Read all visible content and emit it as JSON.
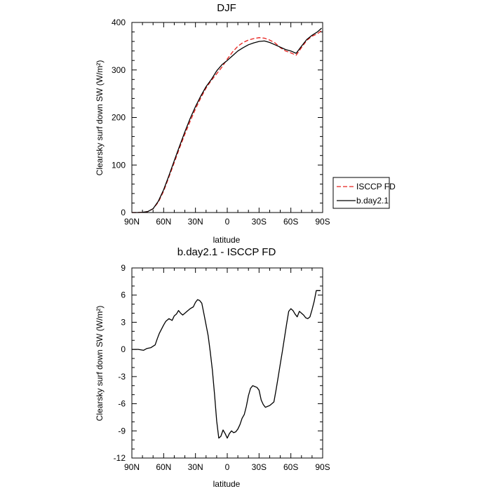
{
  "chart_data": [
    {
      "type": "line",
      "title": "DJF",
      "xlabel": "latitude",
      "ylabel": "Clearsky surf down SW (W/m²)",
      "xlim": [
        90,
        -90
      ],
      "ylim": [
        0,
        400
      ],
      "xticks": [
        90,
        60,
        30,
        0,
        -30,
        -60,
        -90
      ],
      "xticklabels": [
        "90N",
        "60N",
        "30N",
        "0",
        "30S",
        "60S",
        "90S"
      ],
      "yticks": [
        0,
        100,
        200,
        300,
        400
      ],
      "yticklabels": [
        "0",
        "100",
        "200",
        "300",
        "400"
      ],
      "legend": {
        "placement": "right",
        "entries": [
          "ISCCP FD",
          "b.day2.1"
        ]
      },
      "series": [
        {
          "name": "ISCCP FD",
          "color": "#e8201c",
          "dash": "dashed",
          "x": [
            90,
            85,
            80,
            75,
            70,
            65,
            60,
            55,
            50,
            45,
            40,
            35,
            30,
            25,
            20,
            15,
            10,
            5,
            0,
            -5,
            -10,
            -15,
            -20,
            -25,
            -30,
            -35,
            -40,
            -45,
            -50,
            -55,
            -60,
            -65,
            -70,
            -75,
            -80,
            -85,
            -89
          ],
          "y": [
            0,
            0,
            0.5,
            2,
            8,
            22,
            45,
            75,
            105,
            136,
            165,
            192,
            218,
            241,
            262,
            278,
            292,
            306,
            323,
            338,
            350,
            358,
            363,
            366,
            368,
            367,
            363,
            357,
            347,
            340,
            336,
            331,
            347,
            362,
            371,
            376,
            383
          ]
        },
        {
          "name": "b.day2.1",
          "color": "#000000",
          "dash": "solid",
          "x": [
            90,
            85,
            80,
            75,
            70,
            65,
            60,
            55,
            50,
            45,
            40,
            35,
            30,
            25,
            20,
            15,
            10,
            5,
            0,
            -5,
            -10,
            -15,
            -20,
            -25,
            -30,
            -35,
            -40,
            -45,
            -50,
            -55,
            -60,
            -65,
            -70,
            -75,
            -80,
            -85,
            -89
          ],
          "y": [
            0,
            0,
            0.5,
            2,
            8,
            24,
            48,
            78,
            109,
            140,
            170,
            198,
            223,
            245,
            265,
            280,
            298,
            311,
            320,
            330,
            340,
            347,
            353,
            357,
            360,
            361,
            358,
            353,
            348,
            343,
            340,
            335,
            350,
            364,
            373,
            380,
            388
          ]
        }
      ]
    },
    {
      "type": "line",
      "title": "b.day2.1 - ISCCP FD",
      "xlabel": "latitude",
      "ylabel": "Clearsky surf down SW (W/m²)",
      "xlim": [
        90,
        -90
      ],
      "ylim": [
        -12,
        9
      ],
      "xticks": [
        90,
        60,
        30,
        0,
        -30,
        -60,
        -90
      ],
      "xticklabels": [
        "90N",
        "60N",
        "30N",
        "0",
        "30S",
        "60S",
        "90S"
      ],
      "yticks": [
        -12,
        -9,
        -6,
        -3,
        0,
        3,
        6,
        9
      ],
      "yticklabels": [
        "-12",
        "-9",
        "-6",
        "-3",
        "0",
        "3",
        "6",
        "9"
      ],
      "series": [
        {
          "color": "#000000",
          "dash": "solid",
          "x": [
            90,
            84,
            79,
            76,
            72,
            68,
            66,
            64,
            60,
            58,
            55,
            52,
            50,
            48,
            46,
            44,
            42,
            40,
            38,
            35,
            32,
            30,
            28,
            26,
            24,
            22,
            20,
            18,
            16,
            14,
            12,
            10,
            8,
            6,
            4,
            2,
            0,
            -2,
            -4,
            -6,
            -8,
            -10,
            -12,
            -14,
            -16,
            -18,
            -20,
            -22,
            -24,
            -26,
            -28,
            -30,
            -32,
            -34,
            -36,
            -38,
            -40,
            -42,
            -44,
            -46,
            -48,
            -50,
            -52,
            -54,
            -56,
            -58,
            -60,
            -62,
            -64,
            -66,
            -68,
            -70,
            -72,
            -74,
            -76,
            -78,
            -80,
            -82,
            -84,
            -86,
            -88
          ],
          "y": [
            0,
            0,
            -0.1,
            0.1,
            0.2,
            0.5,
            1.2,
            1.8,
            2.7,
            3.1,
            3.4,
            3.2,
            3.7,
            3.9,
            4.3,
            4.0,
            3.8,
            4.0,
            4.2,
            4.5,
            4.7,
            5.2,
            5.5,
            5.4,
            5.1,
            3.9,
            2.7,
            1.5,
            -0.3,
            -2.3,
            -5.0,
            -7.9,
            -9.8,
            -9.6,
            -8.9,
            -9.3,
            -9.8,
            -9.3,
            -9.0,
            -9.2,
            -9.1,
            -8.8,
            -8.3,
            -7.6,
            -7.2,
            -6.3,
            -5.1,
            -4.3,
            -4.0,
            -4.1,
            -4.2,
            -4.5,
            -5.6,
            -6.1,
            -6.4,
            -6.3,
            -6.2,
            -6.0,
            -5.8,
            -4.5,
            -3.1,
            -1.6,
            -0.2,
            1.3,
            2.8,
            4.2,
            4.5,
            4.3,
            3.9,
            3.6,
            4.2,
            4.0,
            3.8,
            3.5,
            3.4,
            3.6,
            4.4,
            5.3,
            6.5,
            6.5,
            6.5
          ]
        }
      ]
    }
  ]
}
